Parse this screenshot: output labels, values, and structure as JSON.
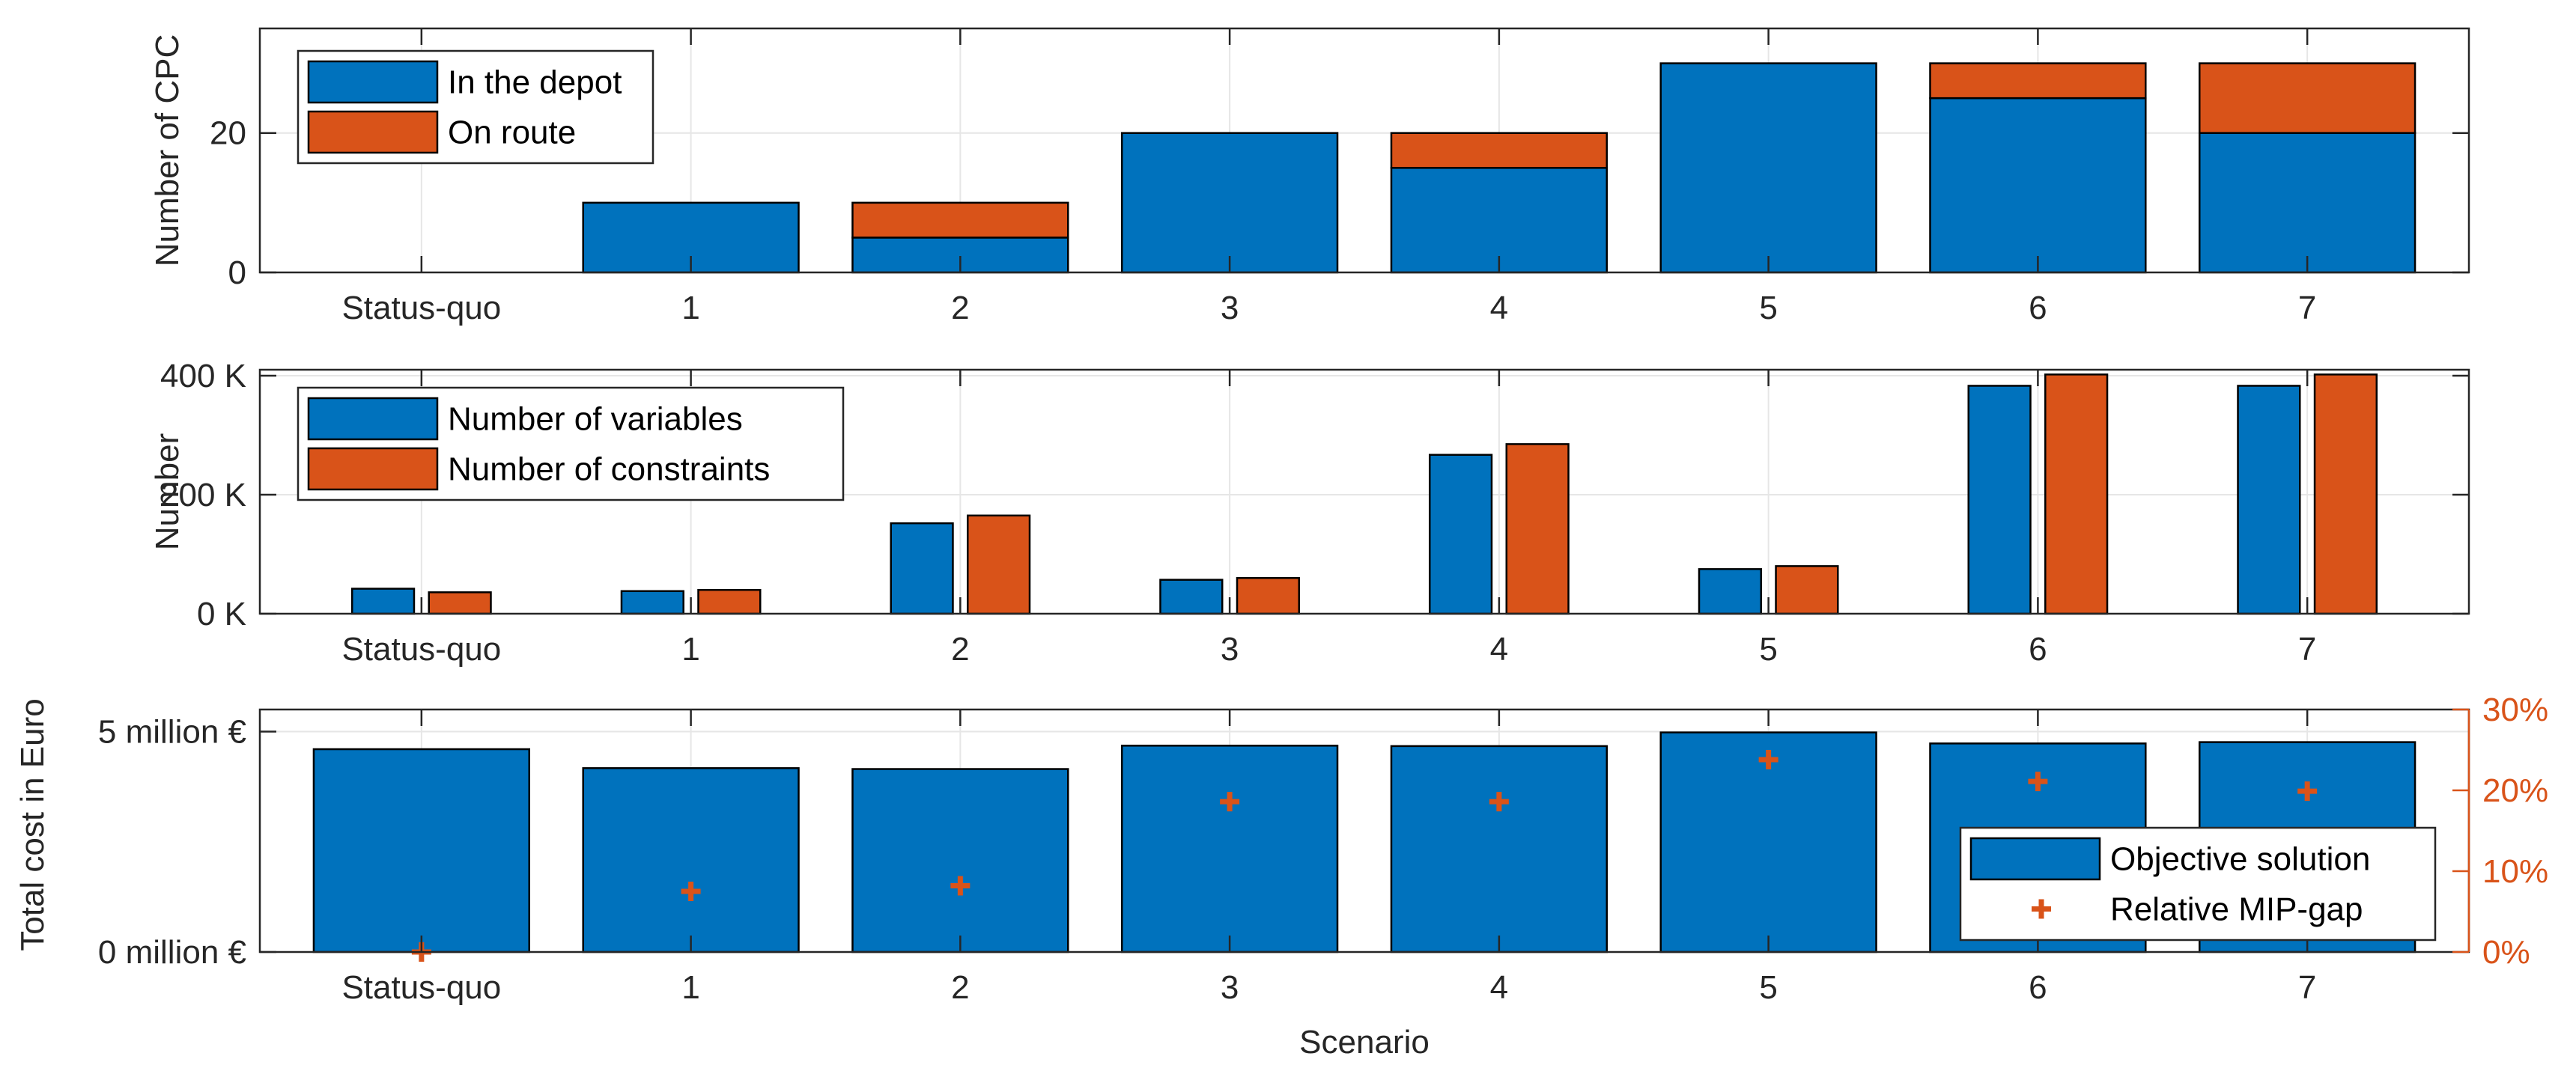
{
  "colors": {
    "blue": "#0072BD",
    "orange": "#D95319",
    "axis": "#262626",
    "grid": "#E6E6E6",
    "right_axis": "#D95319"
  },
  "chart_data": [
    {
      "type": "bar",
      "stacked": true,
      "title": "",
      "ylabel": "Number of CPC",
      "xlabel": "",
      "categories": [
        "Status-quo",
        "1",
        "2",
        "3",
        "4",
        "5",
        "6",
        "7"
      ],
      "ylim": [
        0,
        35
      ],
      "yticks": [
        0,
        20
      ],
      "ytick_labels": [
        "0",
        "20"
      ],
      "grid": true,
      "legend_location": "top-left",
      "series": [
        {
          "name": "In the depot",
          "color": "#0072BD",
          "values": [
            0,
            10,
            5,
            20,
            15,
            30,
            25,
            20
          ]
        },
        {
          "name": "On route",
          "color": "#D95319",
          "values": [
            0,
            0,
            5,
            0,
            5,
            0,
            5,
            10
          ]
        }
      ]
    },
    {
      "type": "bar",
      "stacked": false,
      "title": "",
      "ylabel": "Number",
      "xlabel": "",
      "categories": [
        "Status-quo",
        "1",
        "2",
        "3",
        "4",
        "5",
        "6",
        "7"
      ],
      "ylim": [
        0,
        410000
      ],
      "yticks": [
        0,
        200000,
        400000
      ],
      "ytick_labels": [
        "0 K",
        "200 K",
        "400 K"
      ],
      "grid": true,
      "legend_location": "top-left",
      "series": [
        {
          "name": "Number of variables",
          "color": "#0072BD",
          "values": [
            42000,
            38000,
            152000,
            57000,
            267000,
            75000,
            383000,
            383000
          ]
        },
        {
          "name": "Number of constraints",
          "color": "#D95319",
          "values": [
            36000,
            40000,
            165000,
            60000,
            285000,
            80000,
            402000,
            402000
          ]
        }
      ]
    },
    {
      "type": "bar",
      "title": "",
      "ylabel": "Total cost in Euro",
      "xlabel": "Scenario",
      "categories": [
        "Status-quo",
        "1",
        "2",
        "3",
        "4",
        "5",
        "6",
        "7"
      ],
      "ylim": [
        0,
        5.5
      ],
      "yticks": [
        0,
        5
      ],
      "ytick_labels": [
        "0 million €",
        "5 million €"
      ],
      "y2lim": [
        0,
        30
      ],
      "y2ticks": [
        0,
        10,
        20,
        30
      ],
      "y2tick_labels": [
        "0%",
        "10%",
        "20%",
        "30%"
      ],
      "grid": true,
      "legend_location": "bottom-right",
      "series": [
        {
          "name": "Objective solution",
          "type": "bar",
          "axis": "left",
          "color": "#0072BD",
          "values": [
            4.6,
            4.17,
            4.15,
            4.68,
            4.67,
            4.98,
            4.73,
            4.76
          ]
        },
        {
          "name": "Relative MIP-gap",
          "type": "scatter",
          "marker": "+",
          "axis": "right",
          "color": "#D95319",
          "values": [
            0,
            7.5,
            8.2,
            18.6,
            18.6,
            23.8,
            21.1,
            19.9
          ]
        }
      ]
    }
  ]
}
